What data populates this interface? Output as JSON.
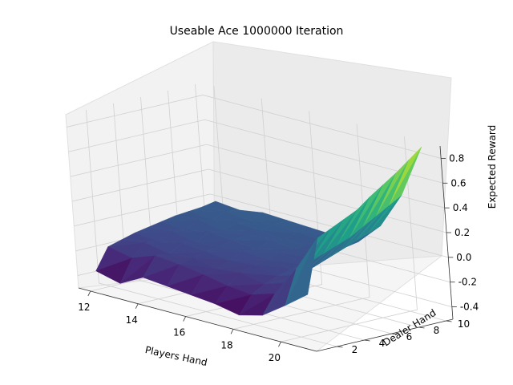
{
  "chart_data": {
    "type": "surface3d",
    "title": "Useable Ace 1000000 Iteration",
    "xlabel": "Players Hand",
    "ylabel": "Dealer Hand",
    "zlabel": "Expected Reward",
    "x_ticks": [
      "12",
      "14",
      "16",
      "18",
      "20"
    ],
    "y_ticks": [
      "2",
      "4",
      "6",
      "8",
      "10"
    ],
    "z_ticks": [
      "-0.4",
      "-0.2",
      "0.0",
      "0.2",
      "0.4",
      "0.6",
      "0.8"
    ],
    "xlim": [
      11.5,
      21.5
    ],
    "ylim": [
      0.5,
      10.5
    ],
    "zlim": [
      -0.5,
      0.9
    ],
    "colormap": "viridis",
    "grid": true,
    "x": [
      12,
      13,
      14,
      15,
      16,
      17,
      18,
      19,
      20,
      21
    ],
    "y": [
      1,
      2,
      3,
      4,
      5,
      6,
      7,
      8,
      9,
      10
    ],
    "z": [
      [
        -0.35,
        -0.4,
        -0.3,
        -0.32,
        -0.34,
        -0.36,
        -0.4,
        -0.35,
        -0.22,
        -0.08
      ],
      [
        -0.18,
        -0.22,
        -0.15,
        -0.17,
        -0.2,
        -0.24,
        -0.26,
        -0.2,
        0.05,
        0.35
      ],
      [
        -0.15,
        -0.12,
        -0.16,
        -0.14,
        -0.18,
        -0.16,
        -0.2,
        -0.14,
        0.08,
        0.4
      ],
      [
        -0.12,
        -0.14,
        -0.1,
        -0.12,
        -0.14,
        -0.12,
        -0.16,
        -0.1,
        0.12,
        0.45
      ],
      [
        -0.1,
        -0.08,
        -0.12,
        -0.1,
        -0.09,
        -0.11,
        -0.13,
        -0.06,
        0.16,
        0.5
      ],
      [
        -0.08,
        -0.1,
        -0.06,
        -0.08,
        -0.1,
        -0.08,
        -0.12,
        -0.02,
        0.2,
        0.58
      ],
      [
        -0.06,
        -0.04,
        -0.08,
        -0.06,
        -0.05,
        -0.07,
        -0.1,
        0.02,
        0.26,
        0.65
      ],
      [
        -0.05,
        -0.07,
        -0.04,
        -0.05,
        -0.08,
        -0.06,
        -0.08,
        0.06,
        0.32,
        0.72
      ],
      [
        -0.04,
        -0.02,
        -0.05,
        -0.03,
        -0.04,
        -0.05,
        -0.06,
        0.1,
        0.38,
        0.8
      ],
      [
        -0.02,
        -0.04,
        -0.01,
        -0.02,
        -0.03,
        -0.04,
        -0.04,
        0.14,
        0.44,
        0.88
      ]
    ]
  }
}
